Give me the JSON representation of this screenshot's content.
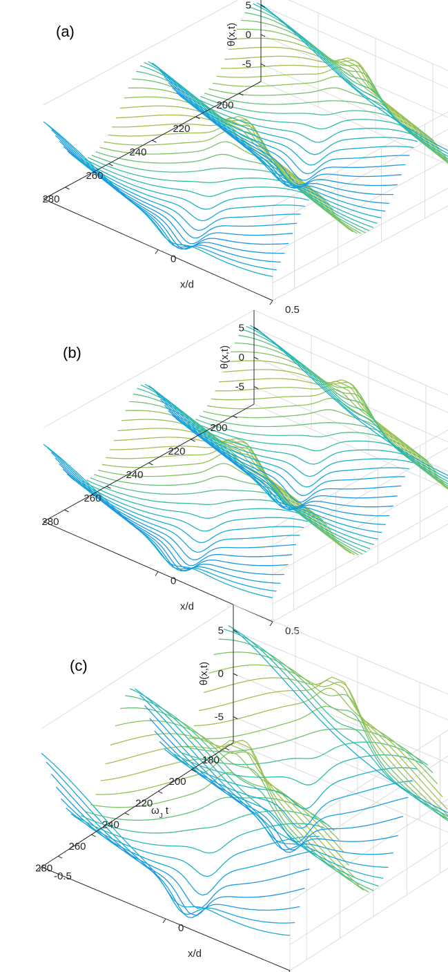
{
  "figure": {
    "panels": [
      {
        "id": "a",
        "label": "(a)"
      },
      {
        "id": "b",
        "label": "(b)"
      },
      {
        "id": "c",
        "label": "(c)"
      }
    ]
  },
  "chart_data": [
    {
      "type": "line",
      "subtype": "3d-waterfall",
      "panel": "(a)",
      "title": "",
      "zlabel": "θ(x,t)",
      "xlabel": "x/d",
      "ylabel": "",
      "x_ticks": [
        "0",
        "0.5"
      ],
      "t_ticks": [
        "280",
        "260",
        "240",
        "220",
        "200"
      ],
      "z_ticks": [
        "5",
        "0",
        "-5"
      ],
      "xlim": [
        -0.5,
        0.5
      ],
      "tlim": [
        190,
        290
      ],
      "zlim": [
        -8,
        8
      ],
      "grid": true,
      "colormap": [
        "#3e26a8",
        "#2f6ff2",
        "#13a8dc",
        "#33bfa0",
        "#8cc356",
        "#e3b63a",
        "#f9e918"
      ],
      "series_note": "one profile θ(x) per time step, drawn as parallel curves",
      "pulse_count": 2,
      "pulse_amplitude": 8
    },
    {
      "type": "line",
      "subtype": "3d-waterfall",
      "panel": "(b)",
      "title": "",
      "zlabel": "θ(x,t)",
      "xlabel": "x/d",
      "ylabel": "",
      "x_ticks": [
        "0",
        "0.5"
      ],
      "t_ticks": [
        "280",
        "260",
        "240",
        "220",
        "200"
      ],
      "z_ticks": [
        "5",
        "0",
        "-5"
      ],
      "xlim": [
        -0.5,
        0.5
      ],
      "tlim": [
        190,
        290
      ],
      "zlim": [
        -8,
        8
      ],
      "grid": true,
      "colormap": [
        "#3e26a8",
        "#2f6ff2",
        "#13a8dc",
        "#33bfa0",
        "#8cc356",
        "#e3b63a",
        "#f9e918"
      ],
      "pulse_count": 2,
      "pulse_amplitude": 8
    },
    {
      "type": "line",
      "subtype": "3d-waterfall",
      "panel": "(c)",
      "title": "",
      "zlabel": "θ(x,t)",
      "xlabel": "x/d",
      "ylabel": "ω_J t",
      "ylabel_main": "ω",
      "ylabel_sub": "J",
      "ylabel_tail": " t",
      "x_ticks": [
        "-0.5",
        "0",
        "0.5"
      ],
      "t_ticks": [
        "280",
        "260",
        "240",
        "220",
        "200",
        "180"
      ],
      "z_ticks": [
        "5",
        "0",
        "-5"
      ],
      "xlim": [
        -0.5,
        0.5
      ],
      "tlim": [
        175,
        290
      ],
      "zlim": [
        -8,
        8
      ],
      "grid": true,
      "colormap": [
        "#3e26a8",
        "#2f6ff2",
        "#13a8dc",
        "#33bfa0",
        "#8cc356",
        "#e3b63a",
        "#f9e918"
      ],
      "pulse_count": 2,
      "pulse_amplitude": 8
    }
  ]
}
